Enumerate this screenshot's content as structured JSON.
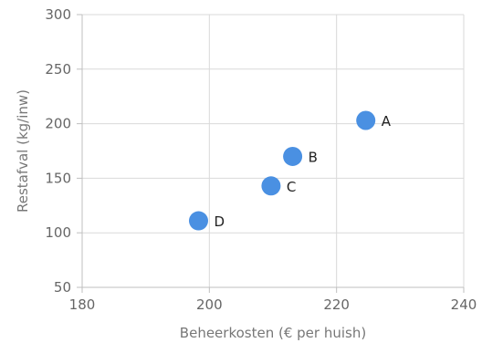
{
  "chart_data": {
    "type": "scatter",
    "title": "",
    "xlabel": "Beheerkosten (€ per huish)",
    "ylabel": "Restafval (kg/inw)",
    "xlim": [
      180,
      240
    ],
    "ylim": [
      50,
      300
    ],
    "x_ticks": [
      180,
      200,
      220,
      240
    ],
    "y_ticks": [
      50,
      100,
      150,
      200,
      250,
      300
    ],
    "grid": true,
    "legend": "none",
    "point_color": "#4a90e2",
    "points": [
      {
        "label": "A",
        "x": 224.6,
        "y": 203
      },
      {
        "label": "B",
        "x": 213.1,
        "y": 170
      },
      {
        "label": "C",
        "x": 209.7,
        "y": 143
      },
      {
        "label": "D",
        "x": 198.3,
        "y": 111
      }
    ]
  }
}
